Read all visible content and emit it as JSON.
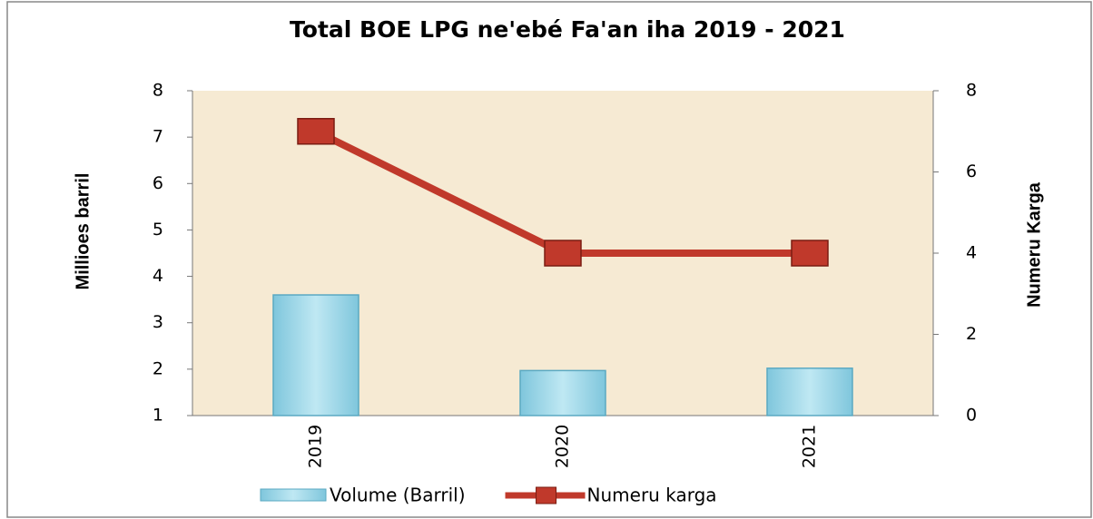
{
  "chart_data": {
    "type": "bar",
    "title": "Total BOE LPG  ne'ebé Fa'an iha 2019 - 2021",
    "categories": [
      "2019",
      "2020",
      "2021"
    ],
    "series": [
      {
        "name": "Volume (Barril)",
        "type": "bar",
        "axis": "y",
        "color": "#9ed8e8",
        "values": [
          3.6,
          1.97,
          2.02
        ]
      },
      {
        "name": "Numeru karga",
        "type": "line",
        "axis": "y2",
        "color": "#c0392b",
        "values": [
          7,
          4,
          4
        ]
      }
    ],
    "ylabel": "Millioes barril",
    "y2label": "Numeru Karga",
    "ylim": [
      1,
      8
    ],
    "yticks": [
      1,
      2,
      3,
      4,
      5,
      6,
      7,
      8
    ],
    "y2lim": [
      0,
      8
    ],
    "y2ticks": [
      0,
      2,
      4,
      6,
      8
    ],
    "legend": "bottom"
  }
}
